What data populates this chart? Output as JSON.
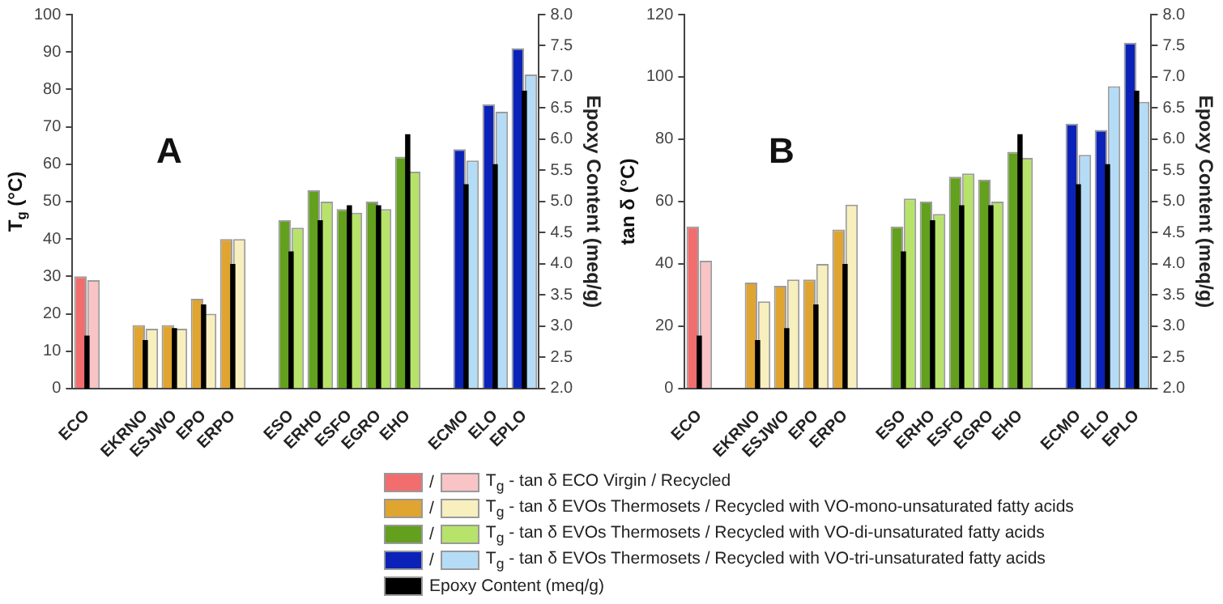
{
  "chart_data": [
    {
      "type": "bar",
      "ylabel": "T$_{g}$ (°C)",
      "y2label": "Epoxy Content (meq/g)",
      "annotations": [
        "A"
      ],
      "categories": [
        "ECO",
        null,
        "EKRNO",
        "ESJWO",
        "EPO",
        "ERPO",
        null,
        "ESO",
        "ERHO",
        "ESFO",
        "EGRO",
        "EHO",
        null,
        "ECMO",
        "ELO",
        "EPLO"
      ],
      "ylim": [
        0,
        100
      ],
      "yticks": [
        0,
        10,
        20,
        30,
        40,
        50,
        60,
        70,
        80,
        90,
        100
      ],
      "y2lim": [
        2,
        8
      ],
      "y2ticks": [
        {
          "value": 2,
          "label": "2.0"
        },
        2.5,
        {
          "value": 3,
          "label": "3.0"
        },
        3.5,
        {
          "value": 4,
          "label": "4.0"
        },
        4.5,
        {
          "value": 5,
          "label": "5.0"
        },
        5.5,
        {
          "value": 6,
          "label": "6.0"
        },
        6.5,
        {
          "value": 7,
          "label": "7.0"
        },
        7.5,
        {
          "value": 8,
          "label": "8.0"
        }
      ],
      "grid": false,
      "legend": "bottom",
      "series": [
        {
          "name": "/",
          "color": "#f26d6d",
          "values": [
            30,
            null,
            null,
            null,
            null,
            null,
            null,
            null,
            null,
            null,
            null,
            null,
            null,
            null,
            null,
            null
          ]
        },
        {
          "name": "T$_{g}$ - tan δ ECO Virgin / Recycled",
          "color": "#f8c4c6",
          "values": [
            29,
            null,
            null,
            null,
            null,
            null,
            null,
            null,
            null,
            null,
            null,
            null,
            null,
            null,
            null,
            null
          ]
        },
        {
          "name": "/",
          "color": "#e0a430",
          "values": [
            null,
            null,
            17,
            17,
            24,
            40,
            null,
            null,
            null,
            null,
            null,
            null,
            null,
            null,
            null,
            null
          ]
        },
        {
          "name": "T$_{g}$ - tan δ EVOs Thermosets / Recycled with VO-mono-unsaturated fatty acids",
          "color": "#f7efbe",
          "values": [
            null,
            null,
            16,
            16,
            20,
            40,
            null,
            null,
            null,
            null,
            null,
            null,
            null,
            null,
            null,
            null
          ]
        },
        {
          "name": "/",
          "color": "#62a01e",
          "values": [
            null,
            null,
            null,
            null,
            null,
            null,
            null,
            45,
            53,
            48,
            50,
            62,
            null,
            null,
            null,
            null
          ]
        },
        {
          "name": "T$_{g}$ - tan δ EVOs Thermosets / Recycled with VO-di-unsaturated fatty acids",
          "color": "#b7e36a",
          "values": [
            null,
            null,
            null,
            null,
            null,
            null,
            null,
            43,
            50,
            47,
            48,
            58,
            null,
            null,
            null,
            null
          ]
        },
        {
          "name": "/",
          "color": "#0b22b8",
          "values": [
            null,
            null,
            null,
            null,
            null,
            null,
            null,
            null,
            null,
            null,
            null,
            null,
            null,
            64,
            76,
            91
          ]
        },
        {
          "name": "T$_{g}$ - tan δ EVOs Thermosets / Recycled with VO-tri-unsaturated fatty acids",
          "color": "#b5dcf7",
          "values": [
            null,
            null,
            null,
            null,
            null,
            null,
            null,
            null,
            null,
            null,
            null,
            null,
            null,
            61,
            74,
            84
          ]
        },
        {
          "name": "Epoxy Content (meq/g)",
          "color": "#000000",
          "axis": "y2",
          "values": [
            2.85,
            null,
            2.78,
            2.97,
            3.35,
            4.0,
            null,
            4.2,
            4.7,
            4.94,
            4.94,
            6.08,
            null,
            5.28,
            5.6,
            6.78
          ]
        }
      ]
    },
    {
      "type": "bar",
      "ylabel": "tan δ (°C)",
      "y2label": "Epoxy Content (meq/g)",
      "annotations": [
        "B"
      ],
      "categories": [
        "ECO",
        null,
        "EKRNO",
        "ESJWO",
        "EPO",
        "ERPO",
        null,
        "ESO",
        "ERHO",
        "ESFO",
        "EGRO",
        "EHO",
        null,
        "ECMO",
        "ELO",
        "EPLO"
      ],
      "ylim": [
        0,
        120
      ],
      "yticks": [
        0,
        20,
        40,
        60,
        80,
        100,
        120
      ],
      "y2lim": [
        2,
        8
      ],
      "y2ticks": [
        {
          "value": 2,
          "label": "2.0"
        },
        2.5,
        {
          "value": 3,
          "label": "3.0"
        },
        3.5,
        {
          "value": 4,
          "label": "4.0"
        },
        4.5,
        {
          "value": 5,
          "label": "5.0"
        },
        5.5,
        {
          "value": 6,
          "label": "6.0"
        },
        6.5,
        {
          "value": 7,
          "label": "7.0"
        },
        7.5,
        {
          "value": 8,
          "label": "8.0"
        }
      ],
      "grid": false,
      "series": [
        {
          "color": "#f26d6d",
          "values": [
            52,
            null,
            null,
            null,
            null,
            null,
            null,
            null,
            null,
            null,
            null,
            null,
            null,
            null,
            null,
            null
          ]
        },
        {
          "color": "#f8c4c6",
          "values": [
            41,
            null,
            null,
            null,
            null,
            null,
            null,
            null,
            null,
            null,
            null,
            null,
            null,
            null,
            null,
            null
          ]
        },
        {
          "color": "#e0a430",
          "values": [
            null,
            null,
            34,
            33,
            35,
            51,
            null,
            null,
            null,
            null,
            null,
            null,
            null,
            null,
            null,
            null
          ]
        },
        {
          "color": "#f7efbe",
          "values": [
            null,
            null,
            28,
            35,
            40,
            59,
            null,
            null,
            null,
            null,
            null,
            null,
            null,
            null,
            null,
            null
          ]
        },
        {
          "color": "#62a01e",
          "values": [
            null,
            null,
            null,
            null,
            null,
            null,
            null,
            52,
            60,
            68,
            67,
            76,
            null,
            null,
            null,
            null
          ]
        },
        {
          "color": "#b7e36a",
          "values": [
            null,
            null,
            null,
            null,
            null,
            null,
            null,
            61,
            56,
            69,
            60,
            74,
            null,
            null,
            null,
            null
          ]
        },
        {
          "color": "#0b22b8",
          "values": [
            null,
            null,
            null,
            null,
            null,
            null,
            null,
            null,
            null,
            null,
            null,
            null,
            null,
            85,
            83,
            111
          ]
        },
        {
          "color": "#b5dcf7",
          "values": [
            null,
            null,
            null,
            null,
            null,
            null,
            null,
            null,
            null,
            null,
            null,
            null,
            null,
            75,
            97,
            92
          ]
        },
        {
          "color": "#000000",
          "axis": "y2",
          "values": [
            2.85,
            null,
            2.78,
            2.97,
            3.35,
            4.0,
            null,
            4.2,
            4.7,
            4.94,
            4.94,
            6.08,
            null,
            5.28,
            5.6,
            6.78
          ]
        }
      ]
    }
  ]
}
